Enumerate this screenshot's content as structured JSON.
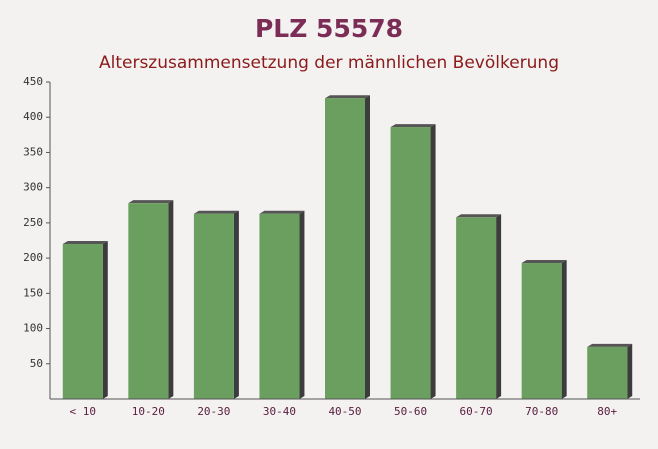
{
  "chart_data": {
    "type": "bar",
    "title": "PLZ 55578",
    "subtitle": "Alterszusammensetzung der männlichen Bevölkerung",
    "categories": [
      "< 10",
      "10-20",
      "20-30",
      "30-40",
      "40-50",
      "50-60",
      "60-70",
      "70-80",
      "80+"
    ],
    "values": [
      220,
      278,
      263,
      263,
      427,
      386,
      258,
      193,
      74
    ],
    "color": "#6b9f5f",
    "ylim": [
      0,
      450
    ],
    "yticks": [
      50,
      100,
      150,
      200,
      250,
      300,
      350,
      400,
      450
    ],
    "grid": false
  }
}
